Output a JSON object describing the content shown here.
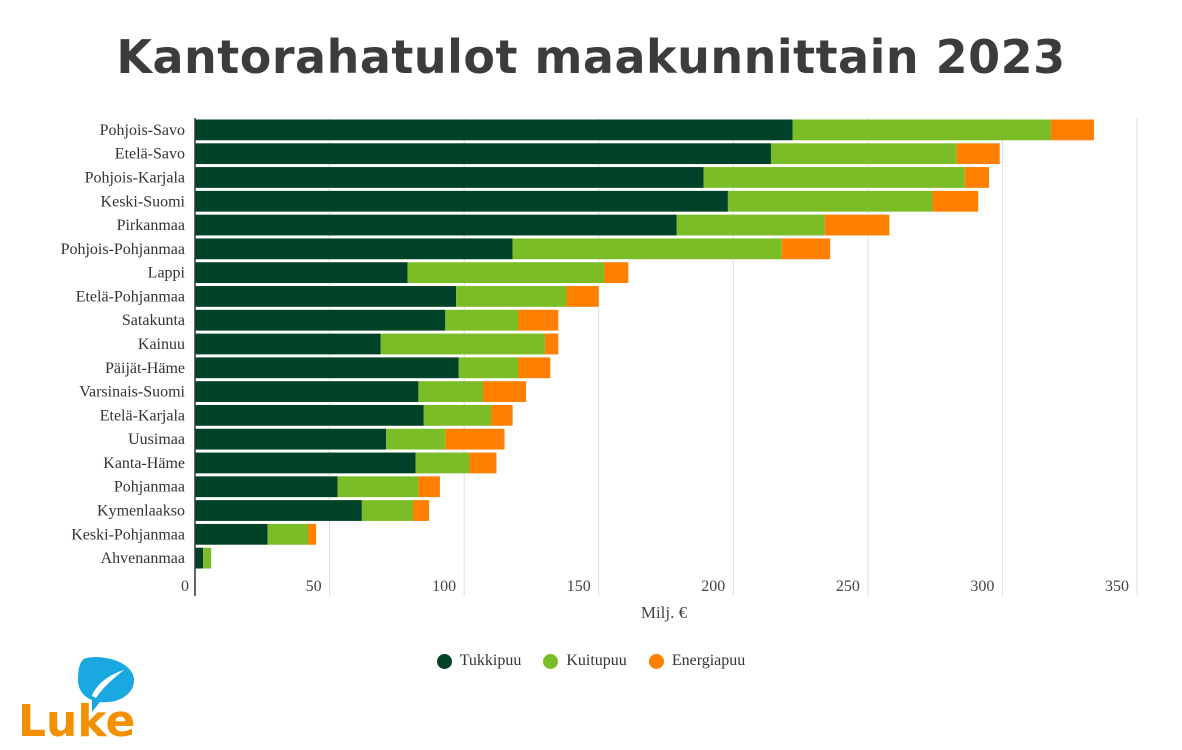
{
  "title": "Kantorahatulot maakunnittain 2023",
  "logo": {
    "text": "Luke"
  },
  "chart_data": {
    "type": "bar",
    "orientation": "horizontal",
    "stacked": true,
    "title": "Kantorahatulot maakunnittain 2023",
    "xlabel": "Milj. €",
    "ylabel": "",
    "xlim": [
      0,
      350
    ],
    "xticks": [
      0,
      50,
      100,
      150,
      200,
      250,
      300,
      350
    ],
    "grid": "vertical",
    "legend_position": "bottom",
    "categories": [
      "Pohjois-Savo",
      "Etelä-Savo",
      "Pohjois-Karjala",
      "Keski-Suomi",
      "Pirkanmaa",
      "Pohjois-Pohjanmaa",
      "Lappi",
      "Etelä-Pohjanmaa",
      "Satakunta",
      "Kainuu",
      "Päijät-Häme",
      "Varsinais-Suomi",
      "Etelä-Karjala",
      "Uusimaa",
      "Kanta-Häme",
      "Pohjanmaa",
      "Kymenlaakso",
      "Keski-Pohjanmaa",
      "Ahvenanmaa"
    ],
    "series": [
      {
        "name": "Tukkipuu",
        "color": "#004227",
        "values": [
          222,
          214,
          189,
          198,
          179,
          118,
          79,
          97,
          93,
          69,
          98,
          83,
          85,
          71,
          82,
          53,
          62,
          27,
          3
        ]
      },
      {
        "name": "Kuitupuu",
        "color": "#7abd26",
        "values": [
          96,
          69,
          97,
          76,
          55,
          100,
          73,
          41,
          27,
          61,
          22,
          24,
          25,
          22,
          20,
          30,
          19,
          15,
          3
        ]
      },
      {
        "name": "Energiapuu",
        "color": "#ff7f00",
        "values": [
          16,
          16,
          9,
          17,
          24,
          18,
          9,
          12,
          15,
          5,
          12,
          16,
          8,
          22,
          10,
          8,
          6,
          3,
          0
        ]
      }
    ]
  }
}
